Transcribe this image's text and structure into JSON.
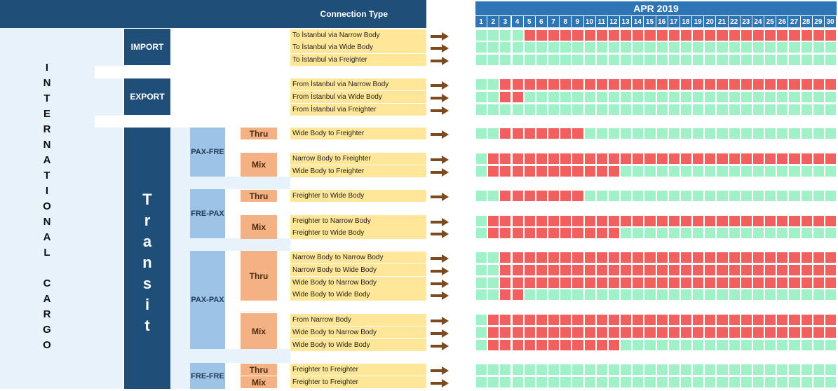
{
  "header": {
    "connection_type": "Connection Type"
  },
  "international_cargo": {
    "letters": [
      "I",
      "N",
      "T",
      "E",
      "R",
      "N",
      "A",
      "T",
      "I",
      "O",
      "N",
      "A",
      "L",
      "",
      "C",
      "A",
      "R",
      "G",
      "O"
    ]
  },
  "sections": {
    "import": "IMPORT",
    "export": "EXPORT",
    "transit_letters": [
      "T",
      "r",
      "a",
      "n",
      "s",
      "i",
      "t"
    ]
  },
  "groups": {
    "pax_fre": "PAX-FRE",
    "fre_pax": "FRE-PAX",
    "pax_pax": "PAX-PAX",
    "fre_fre": "FRE-FRE"
  },
  "modes": {
    "thru": "Thru",
    "mix": "Mix"
  },
  "calendar": {
    "month": "APR 2019",
    "days": [
      1,
      2,
      3,
      4,
      5,
      6,
      7,
      8,
      9,
      10,
      11,
      12,
      13,
      14,
      15,
      16,
      17,
      18,
      19,
      20,
      21,
      22,
      23,
      24,
      25,
      26,
      27,
      28,
      29,
      30
    ]
  },
  "colors": {
    "available": "#a0f0c8",
    "unavailable": "#f25f5f",
    "header": "#2e75b6"
  },
  "rows": [
    {
      "label": "To İstanbul via Narrow Body",
      "red_days": [
        5,
        6,
        7,
        8,
        9,
        10,
        11,
        12,
        13,
        14,
        15,
        16,
        17,
        18,
        19,
        20,
        21,
        22,
        23,
        24,
        25,
        26,
        27,
        28,
        29,
        30
      ]
    },
    {
      "label": "To İstanbul via Wide Body",
      "red_days": []
    },
    {
      "label": "To İstanbul via Freighter",
      "red_days": []
    },
    {
      "label": "From İstanbul via Narrow Body",
      "red_days": [
        3,
        4,
        5,
        6,
        7,
        8,
        9,
        10,
        11,
        12,
        13,
        14,
        15,
        16,
        17,
        18,
        19,
        20,
        21,
        22,
        23,
        24,
        25,
        26,
        27,
        28,
        29,
        30
      ]
    },
    {
      "label": "From İstanbul via Wide Body",
      "red_days": [
        3,
        4
      ]
    },
    {
      "label": "From İstanbul via Freighter",
      "red_days": []
    },
    {
      "label": "Wide Body to Freighter",
      "red_days": [
        3,
        4,
        5,
        6,
        7,
        8,
        9
      ]
    },
    {
      "label": "Narrow Body to Freighter",
      "red_days": [
        2,
        3,
        4,
        5,
        6,
        7,
        8,
        9,
        10,
        11,
        12,
        13,
        14,
        15,
        16,
        17,
        18,
        19,
        20,
        21,
        22,
        23,
        24,
        25,
        26,
        27,
        28,
        29,
        30
      ]
    },
    {
      "label": "Wide Body to Freighter",
      "red_days": [
        2,
        3,
        4,
        5,
        6,
        7,
        8,
        9,
        10,
        11,
        12
      ]
    },
    {
      "label": "Freighter to Wide Body",
      "red_days": [
        3,
        4,
        5,
        6,
        7,
        8,
        9
      ]
    },
    {
      "label": "Freighter to Narrow Body",
      "red_days": [
        2,
        3,
        4,
        5,
        6,
        7,
        8,
        9,
        10,
        11,
        12,
        13,
        14,
        15,
        16,
        17,
        18,
        19,
        20,
        21,
        22,
        23,
        24,
        25,
        26,
        27,
        28,
        29,
        30
      ]
    },
    {
      "label": "Freighter to Wide Body",
      "red_days": [
        2,
        3,
        4,
        5,
        6,
        7,
        8,
        9,
        10,
        11,
        12
      ]
    },
    {
      "label": "Narrow Body to Narrow Body",
      "red_days": [
        3,
        4,
        5,
        6,
        7,
        8,
        9,
        10,
        11,
        12,
        13,
        14,
        15,
        16,
        17,
        18,
        19,
        20,
        21,
        22,
        23,
        24,
        25,
        26,
        27,
        28,
        29,
        30
      ]
    },
    {
      "label": "Narrow Body to Wide Body",
      "red_days": [
        3,
        4,
        5,
        6,
        7,
        8,
        9,
        10,
        11,
        12,
        13,
        14,
        15,
        16,
        17,
        18,
        19,
        20,
        21,
        22,
        23,
        24,
        25,
        26,
        27,
        28,
        29,
        30
      ]
    },
    {
      "label": "Wide Body to Narrow Body",
      "red_days": [
        3,
        4,
        5,
        6,
        7,
        8,
        9,
        10,
        11,
        12,
        13,
        14,
        15,
        16,
        17,
        18,
        19,
        20,
        21,
        22,
        23,
        24,
        25,
        26,
        27,
        28,
        29,
        30
      ]
    },
    {
      "label": "Wide Body to Wide Body",
      "red_days": [
        3,
        4
      ]
    },
    {
      "label": "From Narrow Body",
      "red_days": [
        2,
        3,
        4,
        5,
        6,
        7,
        8,
        9,
        10,
        11,
        12,
        13,
        14,
        15,
        16,
        17,
        18,
        19,
        20,
        21,
        22,
        23,
        24,
        25,
        26,
        27,
        28,
        29,
        30
      ]
    },
    {
      "label": "Wide Body to Narrow Body",
      "red_days": [
        2,
        3,
        4,
        5,
        6,
        7,
        8,
        9,
        10,
        11,
        12,
        13,
        14,
        15,
        16,
        17,
        18,
        19,
        20,
        21,
        22,
        23,
        24,
        25,
        26,
        27,
        28,
        29,
        30
      ]
    },
    {
      "label": "Wide Body to Wide Body",
      "red_days": [
        2,
        3,
        4,
        5,
        6,
        7,
        8,
        9,
        10,
        11,
        12
      ]
    },
    {
      "label": "Freighter to Freighter",
      "red_days": []
    },
    {
      "label": "Freighter to Freighter",
      "red_days": []
    }
  ]
}
